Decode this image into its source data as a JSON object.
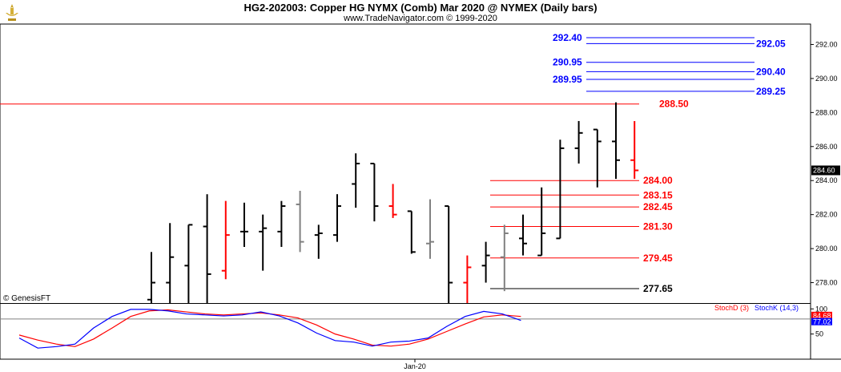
{
  "header": {
    "title": "HG2-202003:  Copper HG NYMX (Comb) Mar 2020 @ NYMEX  (Daily bars)",
    "subtitle": "www.TradeNavigator.com © 1999-2020"
  },
  "watermark": "© GenesisFT",
  "logo_icon": "gold-ornament-icon",
  "colors": {
    "up": "#000000",
    "down": "#ff0000",
    "neutral": "#808080",
    "blue_level": "#0000ff",
    "red_level": "#ff0000",
    "black_level": "#000000",
    "stoch_d": "#ff0000",
    "stoch_k": "#0000ff"
  },
  "chart_data": [
    {
      "type": "ohlc",
      "title": "HG2-202003:  Copper HG NYMX (Comb) Mar 2020 @ NYMEX  (Daily bars)",
      "ylim": [
        276.8,
        293.2
      ],
      "y_ticks": [
        "278.00",
        "280.00",
        "282.00",
        "284.00",
        "286.00",
        "288.00",
        "290.00",
        "292.00"
      ],
      "last_price": "284.60",
      "x_label": "Jan-20",
      "bars": [
        {
          "o": 277.0,
          "h": 279.8,
          "l": 276.0,
          "c": 278.0,
          "color": "up"
        },
        {
          "o": 278.0,
          "h": 281.5,
          "l": 276.0,
          "c": 279.5,
          "color": "up"
        },
        {
          "o": 279.0,
          "h": 281.4,
          "l": 276.0,
          "c": 281.4,
          "color": "up"
        },
        {
          "o": 281.3,
          "h": 283.2,
          "l": 276.0,
          "c": 278.5,
          "color": "up"
        },
        {
          "o": 278.7,
          "h": 282.8,
          "l": 278.2,
          "c": 280.8,
          "color": "down"
        },
        {
          "o": 281.0,
          "h": 282.7,
          "l": 280.1,
          "c": 281.0,
          "color": "up"
        },
        {
          "o": 281.0,
          "h": 282.0,
          "l": 278.7,
          "c": 281.2,
          "color": "up"
        },
        {
          "o": 281.0,
          "h": 282.8,
          "l": 280.1,
          "c": 282.5,
          "color": "up"
        },
        {
          "o": 282.6,
          "h": 283.4,
          "l": 279.8,
          "c": 280.4,
          "color": "neutral"
        },
        {
          "o": 280.8,
          "h": 281.4,
          "l": 279.4,
          "c": 280.9,
          "color": "up"
        },
        {
          "o": 280.8,
          "h": 283.2,
          "l": 280.4,
          "c": 282.5,
          "color": "up"
        },
        {
          "o": 283.8,
          "h": 285.6,
          "l": 282.4,
          "c": 285.0,
          "color": "up"
        },
        {
          "o": 285.0,
          "h": 285.0,
          "l": 281.6,
          "c": 282.5,
          "color": "up"
        },
        {
          "o": 282.5,
          "h": 283.8,
          "l": 281.8,
          "c": 282.0,
          "color": "down"
        },
        {
          "o": 282.2,
          "h": 282.2,
          "l": 279.7,
          "c": 279.8,
          "color": "up"
        },
        {
          "o": 280.3,
          "h": 282.9,
          "l": 279.4,
          "c": 280.4,
          "color": "neutral"
        },
        {
          "o": 282.5,
          "h": 282.5,
          "l": 276.0,
          "c": 278.0,
          "color": "up"
        },
        {
          "o": 278.0,
          "h": 279.6,
          "l": 276.0,
          "c": 278.9,
          "color": "down"
        },
        {
          "o": 279.0,
          "h": 280.4,
          "l": 278.0,
          "c": 279.6,
          "color": "up"
        },
        {
          "o": 279.5,
          "h": 281.4,
          "l": 277.5,
          "c": 280.9,
          "color": "neutral"
        },
        {
          "o": 280.6,
          "h": 282.0,
          "l": 279.6,
          "c": 280.3,
          "color": "up"
        },
        {
          "o": 279.6,
          "h": 283.6,
          "l": 279.6,
          "c": 280.9,
          "color": "up"
        },
        {
          "o": 280.6,
          "h": 286.4,
          "l": 280.6,
          "c": 285.9,
          "color": "up"
        },
        {
          "o": 285.9,
          "h": 287.5,
          "l": 285.0,
          "c": 286.8,
          "color": "up"
        },
        {
          "o": 287.0,
          "h": 287.0,
          "l": 283.6,
          "c": 286.3,
          "color": "up"
        },
        {
          "o": 286.3,
          "h": 288.6,
          "l": 284.1,
          "c": 285.2,
          "color": "up"
        },
        {
          "o": 285.2,
          "h": 287.5,
          "l": 284.1,
          "c": 284.6,
          "color": "down"
        }
      ],
      "levels": [
        {
          "value": 292.4,
          "label": "292.40",
          "color": "blue_level",
          "side": "left"
        },
        {
          "value": 292.05,
          "label": "292.05",
          "color": "blue_level",
          "side": "right"
        },
        {
          "value": 290.95,
          "label": "290.95",
          "color": "blue_level",
          "side": "left"
        },
        {
          "value": 290.4,
          "label": "290.40",
          "color": "blue_level",
          "side": "right"
        },
        {
          "value": 289.95,
          "label": "289.95",
          "color": "blue_level",
          "side": "left"
        },
        {
          "value": 289.25,
          "label": "289.25",
          "color": "blue_level",
          "side": "right"
        },
        {
          "value": 288.5,
          "label": "288.50",
          "color": "red_level",
          "side": "full"
        },
        {
          "value": 284.0,
          "label": "284.00",
          "color": "red_level",
          "side": "mid"
        },
        {
          "value": 283.15,
          "label": "283.15",
          "color": "red_level",
          "side": "mid"
        },
        {
          "value": 282.45,
          "label": "282.45",
          "color": "red_level",
          "side": "mid"
        },
        {
          "value": 281.3,
          "label": "281.30",
          "color": "red_level",
          "side": "mid"
        },
        {
          "value": 279.45,
          "label": "279.45",
          "color": "red_level",
          "side": "mid"
        },
        {
          "value": 277.65,
          "label": "277.65",
          "color": "black_level",
          "side": "mid"
        }
      ]
    },
    {
      "type": "line",
      "title": "",
      "ylim": [
        0,
        110
      ],
      "y_ticks": [
        "50",
        "100"
      ],
      "legend": [
        "StochD (3)",
        "StochK (14,3)"
      ],
      "last_values": {
        "stochD": "84.68",
        "stochK": "77.02"
      },
      "series": [
        {
          "name": "StochD (3)",
          "color": "stoch_d",
          "values": [
            48,
            38,
            30,
            25,
            40,
            62,
            85,
            96,
            98,
            94,
            90,
            88,
            90,
            92,
            88,
            82,
            68,
            50,
            40,
            28,
            26,
            30,
            40,
            55,
            70,
            84,
            88,
            85
          ]
        },
        {
          "name": "StochK (14,3)",
          "color": "stoch_k",
          "values": [
            42,
            22,
            25,
            30,
            62,
            85,
            99,
            99,
            96,
            90,
            88,
            86,
            88,
            94,
            86,
            72,
            52,
            37,
            34,
            26,
            34,
            36,
            42,
            65,
            85,
            95,
            90,
            77
          ]
        }
      ]
    }
  ]
}
